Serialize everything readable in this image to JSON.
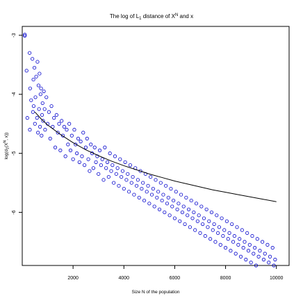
{
  "chart_data": {
    "type": "scatter",
    "title": "The log of L1 distance of XN and x",
    "title_parts": {
      "t1": "The log of L",
      "t2": "1",
      "t3": " distance of X",
      "t4": "N",
      "t5": " and x"
    },
    "xlabel": "Size N of the population",
    "ylabel": "log(d1(XN, x))",
    "ylabel_parts": {
      "p1": "log(d",
      "p2": "1",
      "p3": "(X",
      "p4": "N",
      "p5": ", x))"
    },
    "xlim": [
      0,
      10500
    ],
    "ylim": [
      -6.9,
      -2.85
    ],
    "xticks": [
      2000,
      4000,
      6000,
      8000,
      10000
    ],
    "xtick_labels": [
      "2000",
      "4000",
      "6000",
      "8000",
      "10000"
    ],
    "yticks": [
      -3,
      -4,
      -5,
      -6
    ],
    "ytick_labels": [
      "-3",
      "-4",
      "-5",
      "-6"
    ],
    "grid": false,
    "legend": "none",
    "series": [
      {
        "marker": "open-circle",
        "color": "#0000cc",
        "x": [
          100,
          100,
          170,
          200,
          290,
          300,
          310,
          350,
          400,
          420,
          440,
          450,
          480,
          500,
          520,
          550,
          580,
          600,
          620,
          640,
          660,
          680,
          700,
          720,
          740,
          760,
          780,
          800,
          820,
          850,
          880,
          900,
          950,
          1000,
          1050,
          1100,
          1150,
          1200,
          1250,
          1300,
          1350,
          1400,
          1450,
          1500,
          1550,
          1600,
          1650,
          1700,
          1750,
          1800,
          1850,
          1900,
          1950,
          2000,
          2050,
          2100,
          2150,
          2200,
          2250,
          2300,
          2350,
          2400,
          2450,
          2500,
          2550,
          2600,
          2650,
          2700,
          2750,
          2800,
          2850,
          2900,
          2950,
          3000,
          3050,
          3100,
          3150,
          3200,
          3250,
          3300,
          3350,
          3400,
          3450,
          3500,
          3550,
          3600,
          3650,
          3700,
          3750,
          3800,
          3850,
          3900,
          3950,
          4000,
          4050,
          4100,
          4150,
          4200,
          4250,
          4300,
          4350,
          4400,
          4450,
          4500,
          4550,
          4600,
          4650,
          4700,
          4750,
          4800,
          4850,
          4900,
          4950,
          5000,
          5050,
          5100,
          5150,
          5200,
          5250,
          5300,
          5350,
          5400,
          5450,
          5500,
          5550,
          5600,
          5650,
          5700,
          5750,
          5800,
          5850,
          5900,
          5950,
          6000,
          6050,
          6100,
          6150,
          6200,
          6250,
          6300,
          6350,
          6400,
          6450,
          6500,
          6550,
          6600,
          6650,
          6700,
          6750,
          6800,
          6850,
          6900,
          6950,
          7000,
          7050,
          7100,
          7150,
          7200,
          7250,
          7300,
          7350,
          7400,
          7450,
          7500,
          7550,
          7600,
          7650,
          7700,
          7750,
          7800,
          7850,
          7900,
          7950,
          8000,
          8050,
          8100,
          8150,
          8200,
          8250,
          8300,
          8350,
          8400,
          8450,
          8500,
          8550,
          8600,
          8650,
          8700,
          8750,
          8800,
          8850,
          8900,
          8950,
          9000,
          9050,
          9100,
          9150,
          9200,
          9250,
          9300,
          9350,
          9400,
          9450,
          9500,
          9550,
          9600,
          9650,
          9700,
          9750,
          9800,
          9850,
          9900,
          9950,
          10000
        ],
        "y": [
          -2.99,
          -3.01,
          -3.6,
          -4.4,
          -3.3,
          -4.6,
          -3.9,
          -4.1,
          -3.4,
          -4.3,
          -3.75,
          -4.2,
          -3.55,
          -4.5,
          -4.05,
          -3.7,
          -4.4,
          -3.45,
          -4.65,
          -3.85,
          -4.25,
          -3.65,
          -4.55,
          -4.0,
          -3.9,
          -4.7,
          -4.35,
          -4.15,
          -4.45,
          -3.95,
          -4.25,
          -4.6,
          -4.05,
          -4.5,
          -4.3,
          -4.75,
          -4.2,
          -4.55,
          -4.4,
          -4.9,
          -4.35,
          -4.65,
          -4.5,
          -4.95,
          -4.45,
          -4.7,
          -4.55,
          -5.05,
          -4.6,
          -4.85,
          -4.5,
          -4.95,
          -4.7,
          -5.1,
          -4.6,
          -4.85,
          -5.0,
          -4.75,
          -5.15,
          -4.8,
          -5.05,
          -4.65,
          -5.2,
          -4.9,
          -4.75,
          -5.1,
          -5.3,
          -4.85,
          -5.0,
          -5.25,
          -4.9,
          -5.15,
          -5.05,
          -5.35,
          -4.95,
          -5.2,
          -5.1,
          -5.45,
          -4.9,
          -5.25,
          -5.15,
          -5.4,
          -5.0,
          -5.3,
          -5.2,
          -5.5,
          -5.05,
          -5.35,
          -5.25,
          -5.55,
          -5.1,
          -5.4,
          -5.3,
          -5.6,
          -5.15,
          -5.45,
          -5.35,
          -5.65,
          -5.2,
          -5.5,
          -5.4,
          -5.7,
          -5.25,
          -5.55,
          -5.45,
          -5.75,
          -5.3,
          -5.6,
          -5.5,
          -5.8,
          -5.35,
          -5.65,
          -5.55,
          -5.85,
          -5.4,
          -5.7,
          -5.6,
          -5.9,
          -5.45,
          -5.75,
          -5.65,
          -5.95,
          -5.5,
          -5.8,
          -5.7,
          -6.0,
          -5.55,
          -5.85,
          -5.75,
          -6.05,
          -5.6,
          -5.9,
          -5.8,
          -6.1,
          -5.65,
          -5.95,
          -5.85,
          -6.15,
          -5.7,
          -6.0,
          -5.9,
          -6.2,
          -5.75,
          -6.05,
          -5.95,
          -6.25,
          -5.8,
          -6.1,
          -6.0,
          -6.3,
          -5.85,
          -6.15,
          -6.05,
          -6.35,
          -5.9,
          -6.2,
          -6.1,
          -6.4,
          -5.95,
          -6.25,
          -6.15,
          -6.45,
          -6.0,
          -6.3,
          -6.2,
          -6.5,
          -6.05,
          -6.35,
          -6.25,
          -6.55,
          -6.1,
          -6.4,
          -6.3,
          -6.6,
          -6.15,
          -6.45,
          -6.35,
          -6.65,
          -6.2,
          -6.5,
          -6.4,
          -6.7,
          -6.25,
          -6.55,
          -6.45,
          -6.75,
          -6.3,
          -6.6,
          -6.5,
          -6.8,
          -6.35,
          -6.65,
          -6.55,
          -6.85,
          -6.4,
          -6.7,
          -6.6,
          -6.9,
          -6.45,
          -6.75,
          -6.65,
          -6.95,
          -6.5,
          -6.8,
          -6.7,
          -7.0,
          -6.55,
          -6.85,
          -6.75,
          -7.05,
          -6.6,
          -6.9,
          -6.8,
          -7.1
        ]
      },
      {
        "marker": "line",
        "color": "#000000",
        "x": [
          500,
          750,
          1000,
          1500,
          2000,
          2500,
          3000,
          3500,
          4000,
          4500,
          5000,
          5500,
          6000,
          6500,
          7000,
          7500,
          8000,
          8500,
          9000,
          9500,
          10000
        ],
        "y": [
          -4.3,
          -4.42,
          -4.52,
          -4.68,
          -4.82,
          -4.94,
          -5.04,
          -5.13,
          -5.21,
          -5.28,
          -5.35,
          -5.41,
          -5.47,
          -5.52,
          -5.57,
          -5.62,
          -5.66,
          -5.7,
          -5.74,
          -5.78,
          -5.82
        ]
      }
    ]
  }
}
